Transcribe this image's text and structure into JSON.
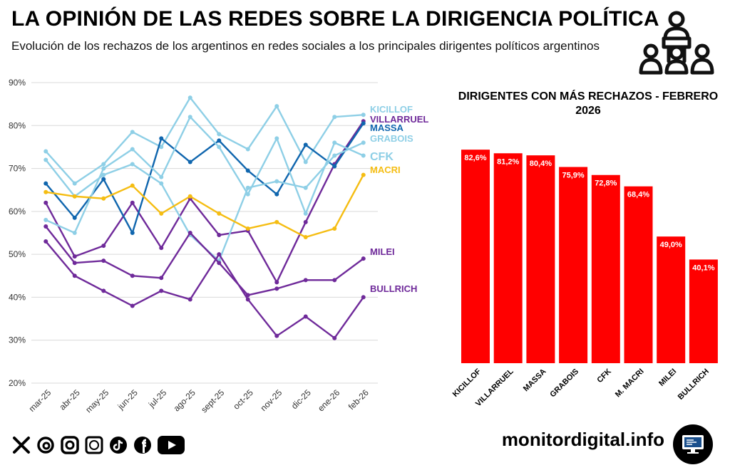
{
  "header": {
    "title": "LA OPINIÓN DE LAS REDES SOBRE LA DIRIGENCIA POLÍTICA",
    "subtitle": "Evolución de los rechazos de los argentinos en redes sociales a los principales dirigentes políticos argentinos",
    "icon": "audience-podium-icon"
  },
  "colors": {
    "light_blue": "#8ecfe6",
    "dark_blue": "#1066ae",
    "purple": "#6f2a9a",
    "yellow": "#f5bd12",
    "bar_red": "#ff0000"
  },
  "chart_data": [
    {
      "type": "line",
      "x": [
        "mar-25",
        "abr-25",
        "may-25",
        "jun-25",
        "jul-25",
        "ago-25",
        "sept-25",
        "oct-25",
        "nov-25",
        "dic-25",
        "ene-26",
        "feb-26"
      ],
      "ylim": [
        20,
        90
      ],
      "yticks": [
        "20%",
        "30%",
        "40%",
        "50%",
        "60%",
        "70%",
        "80%",
        "90%"
      ],
      "grid": true,
      "series": [
        {
          "name": "KICILLOF",
          "color": "#8ecfe6",
          "values": [
            74,
            66.5,
            71,
            78.5,
            75,
            86.5,
            78,
            74.5,
            84.5,
            71.5,
            82,
            82.5
          ]
        },
        {
          "name": "VILLARRUEL",
          "color": "#6f2a9a",
          "values": [
            62,
            49.5,
            52,
            62,
            51.5,
            63,
            54.5,
            55.5,
            43.5,
            57.5,
            71,
            81
          ]
        },
        {
          "name": "MASSA",
          "color": "#1066ae",
          "values": [
            66.5,
            58.5,
            67.5,
            55,
            77,
            71.5,
            76.5,
            69.5,
            64,
            75.5,
            70.5,
            80.5
          ]
        },
        {
          "name": "GRABOIS",
          "color": "#8ecfe6",
          "values": [
            72,
            63.5,
            68.5,
            71,
            66.5,
            54.5,
            48.5,
            65.5,
            67,
            65.5,
            73,
            76
          ]
        },
        {
          "name": "CFK",
          "color": "#8ecfe6",
          "values": [
            58,
            55,
            70,
            74.5,
            68,
            82,
            75,
            64,
            77,
            59.5,
            76,
            73
          ]
        },
        {
          "name": "MACRI",
          "color": "#f5bd12",
          "values": [
            64.5,
            63.5,
            63,
            66,
            59.5,
            63.5,
            59.5,
            56,
            57.5,
            54,
            56,
            68.5
          ]
        },
        {
          "name": "MILEI",
          "color": "#6f2a9a",
          "values": [
            56.5,
            48,
            48.5,
            45,
            44.5,
            55,
            48,
            40.5,
            42,
            44,
            44,
            49
          ]
        },
        {
          "name": "BULLRICH",
          "color": "#6f2a9a",
          "values": [
            53,
            45,
            41.5,
            38,
            41.5,
            39.5,
            50,
            39.5,
            31,
            35.5,
            30.5,
            40
          ]
        }
      ]
    },
    {
      "type": "bar",
      "title": "DIRIGENTES CON MÁS RECHAZOS - FEBRERO 2026",
      "categories": [
        "KICILLOF",
        "VILLARRUEL",
        "MASSA",
        "GRABOIS",
        "CFK",
        "M. MACRI",
        "MILEI",
        "BULLRICH"
      ],
      "values": [
        82.6,
        81.2,
        80.4,
        75.9,
        72.8,
        68.4,
        49.0,
        40.1
      ],
      "labels": [
        "82,6%",
        "81,2%",
        "80,4%",
        "75,9%",
        "72,8%",
        "68,4%",
        "49,0%",
        "40,1%"
      ],
      "color": "#ff0000"
    }
  ],
  "footer": {
    "social_icons": [
      "x-icon",
      "threads-icon",
      "instagram-icon",
      "app-icon",
      "tiktok-icon",
      "facebook-icon",
      "youtube-icon"
    ],
    "site": "monitordigital.info",
    "logo": "monitor-logo-icon"
  }
}
